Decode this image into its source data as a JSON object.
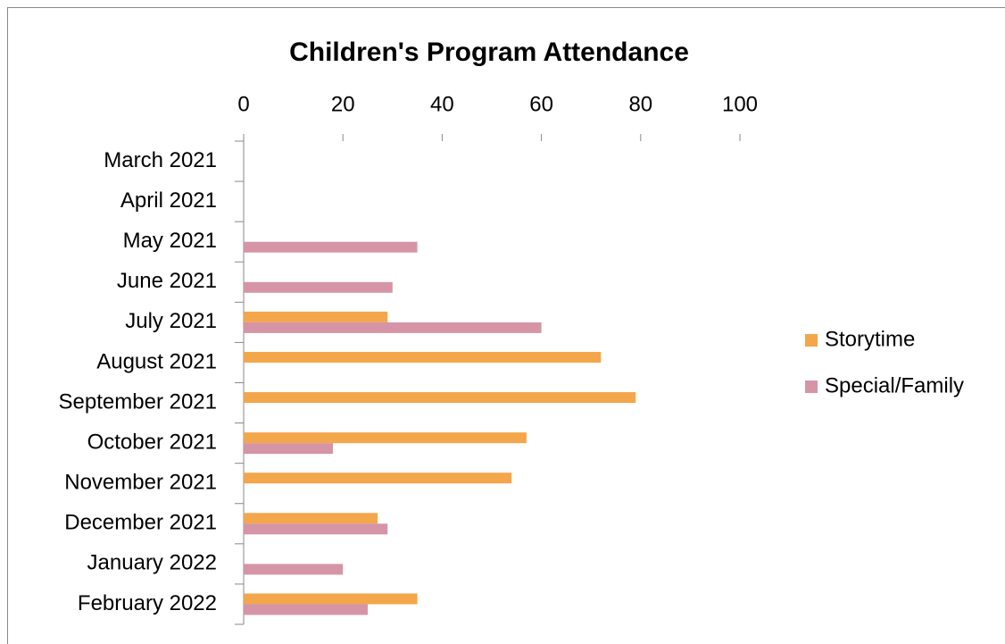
{
  "chart_data": {
    "type": "bar",
    "orientation": "horizontal",
    "title": "Children's Program Attendance",
    "categories": [
      "March 2021",
      "April 2021",
      "May 2021",
      "June 2021",
      "July 2021",
      "August 2021",
      "September 2021",
      "October 2021",
      "November 2021",
      "December 2021",
      "January 2022",
      "February 2022"
    ],
    "series": [
      {
        "name": "Storytime",
        "color": "#f4a64a",
        "values": [
          0,
          0,
          0,
          0,
          29,
          72,
          79,
          57,
          54,
          27,
          0,
          35
        ]
      },
      {
        "name": "Special/Family",
        "color": "#d595a7",
        "values": [
          0,
          0,
          35,
          30,
          60,
          0,
          0,
          18,
          0,
          29,
          20,
          25
        ]
      }
    ],
    "xlim": [
      0,
      100
    ],
    "xticks": [
      0,
      20,
      40,
      60,
      80,
      100
    ],
    "legend": "right"
  }
}
